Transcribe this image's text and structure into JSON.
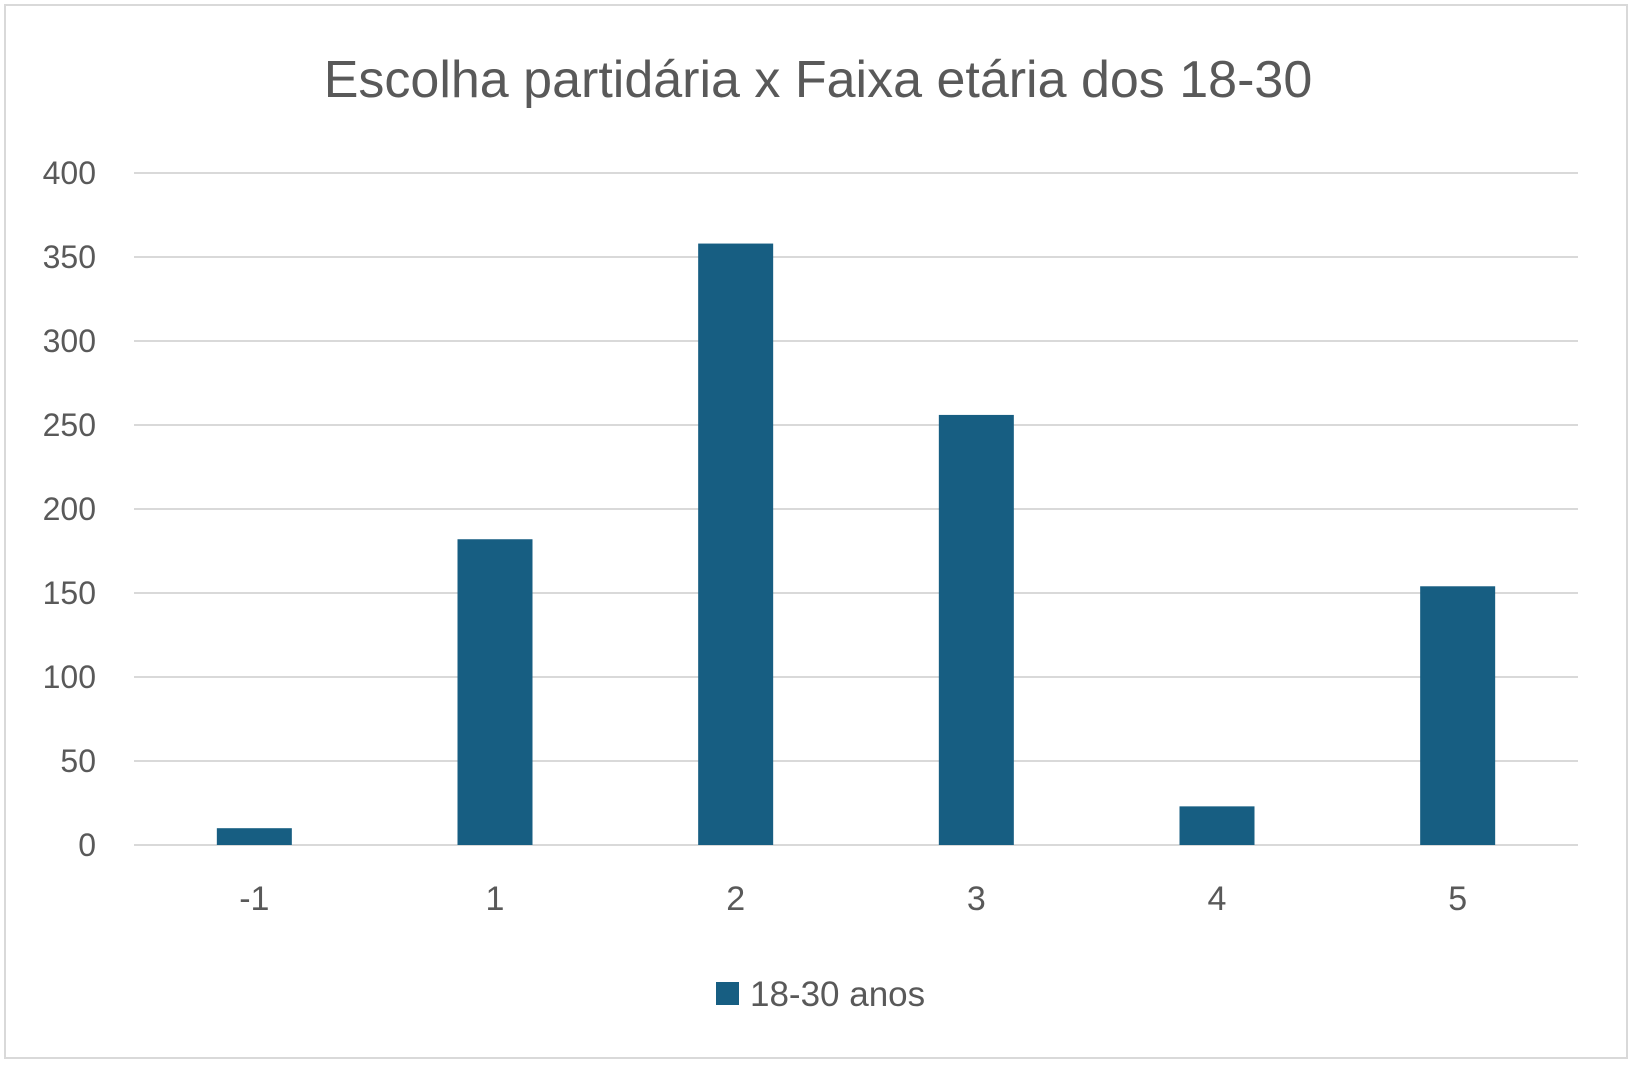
{
  "chart_data": {
    "type": "bar",
    "title": "Escolha partidária x Faixa etária dos 18-30",
    "categories": [
      "-1",
      "1",
      "2",
      "3",
      "4",
      "5"
    ],
    "series": [
      {
        "name": "18-30 anos",
        "values": [
          10,
          182,
          358,
          256,
          23,
          154
        ],
        "color": "#175e82"
      }
    ],
    "ylim": [
      0,
      400
    ],
    "yticks": [
      "0",
      "50",
      "100",
      "150",
      "200",
      "250",
      "300",
      "350",
      "400"
    ],
    "xlabel": "",
    "ylabel": "",
    "grid": true,
    "legend": "bottom"
  }
}
